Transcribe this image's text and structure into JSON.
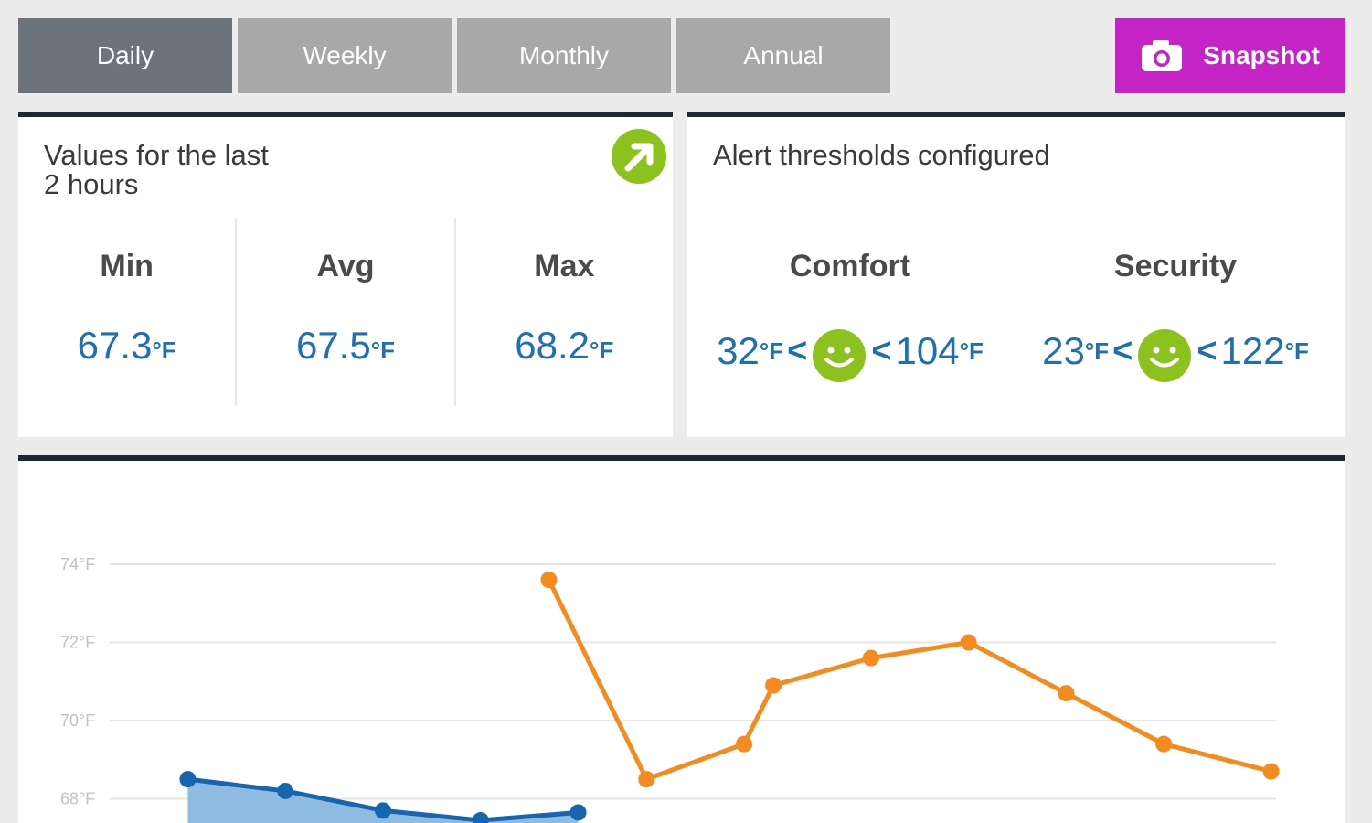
{
  "tabs": [
    {
      "label": "Daily",
      "active": true
    },
    {
      "label": "Weekly",
      "active": false
    },
    {
      "label": "Monthly",
      "active": false
    },
    {
      "label": "Annual",
      "active": false
    }
  ],
  "snapshot": {
    "label": "Snapshot",
    "icon": "camera-icon"
  },
  "summary": {
    "title": "Values for the last 2 hours",
    "stats": [
      {
        "label": "Min",
        "value": "67.3",
        "unit": "°F"
      },
      {
        "label": "Avg",
        "value": "67.5",
        "unit": "°F"
      },
      {
        "label": "Max",
        "value": "68.2",
        "unit": "°F"
      }
    ]
  },
  "alerts": {
    "title": "Alert thresholds configured",
    "comfort": {
      "label": "Comfort",
      "low": "32",
      "high": "104",
      "unit": "°F",
      "status_icon": "smiley-icon"
    },
    "security": {
      "label": "Security",
      "low": "23",
      "high": "122",
      "unit": "°F",
      "status_icon": "smiley-icon"
    }
  },
  "colors": {
    "tab_active": "#6c737b",
    "tab_inactive": "#a8a8a8",
    "snapshot": "#c424c6",
    "value_text": "#1f6fb5",
    "ok_green": "#8cc21e",
    "series_blue": "#1565b0",
    "series_orange": "#f58a1f"
  },
  "chart_data": {
    "type": "line",
    "y_ticks": [
      "74°F",
      "72°F",
      "70°F",
      "68°F"
    ],
    "y_tick_values": [
      74,
      72,
      70,
      68
    ],
    "ylim": [
      67,
      75
    ],
    "grid": true,
    "series": [
      {
        "color": "#1565b0",
        "area": true,
        "points": [
          [
            0,
            68.5
          ],
          [
            1,
            68.2
          ],
          [
            2,
            67.7
          ],
          [
            3,
            67.45
          ],
          [
            4,
            67.65
          ]
        ]
      },
      {
        "color": "#f58a1f",
        "area": false,
        "points": [
          [
            3.7,
            73.6
          ],
          [
            4.7,
            68.5
          ],
          [
            5.7,
            69.4
          ],
          [
            6,
            70.9
          ],
          [
            7,
            71.6
          ],
          [
            8,
            72.0
          ],
          [
            9,
            70.7
          ],
          [
            10,
            69.4
          ],
          [
            11.1,
            68.7
          ]
        ]
      }
    ],
    "xlim": [
      -0.8,
      11.15
    ]
  }
}
